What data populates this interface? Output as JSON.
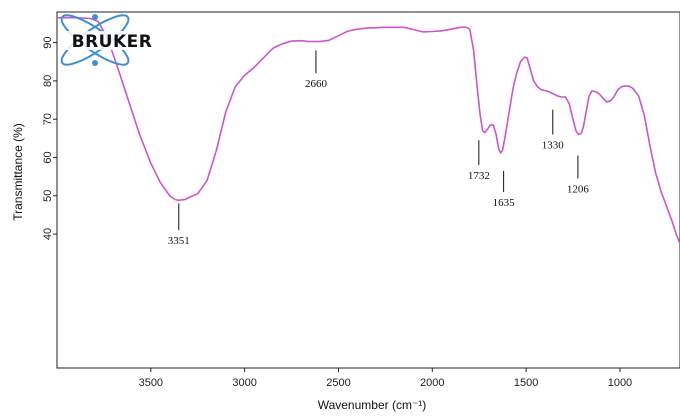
{
  "chart_data": {
    "type": "line",
    "xlabel": "Wavenumber (cm⁻¹)",
    "ylabel": "Transmittance  (%)",
    "xlim": [
      4000,
      680
    ],
    "ylim": [
      5,
      98
    ],
    "x_ticks": [
      3500,
      3000,
      2500,
      2000,
      1500,
      1000
    ],
    "y_ticks": [
      40,
      50,
      60,
      70,
      80,
      90
    ],
    "grid": false,
    "series": [
      {
        "color": "#cc55cc",
        "points": [
          [
            4000,
            96.5
          ],
          [
            3900,
            96.5
          ],
          [
            3820,
            96.3
          ],
          [
            3780,
            95.5
          ],
          [
            3730,
            91
          ],
          [
            3680,
            84
          ],
          [
            3620,
            75
          ],
          [
            3560,
            66
          ],
          [
            3500,
            58.5
          ],
          [
            3450,
            53.5
          ],
          [
            3400,
            50
          ],
          [
            3370,
            49
          ],
          [
            3351,
            48.8
          ],
          [
            3320,
            49
          ],
          [
            3290,
            49.7
          ],
          [
            3250,
            50.5
          ],
          [
            3200,
            54
          ],
          [
            3150,
            62
          ],
          [
            3100,
            72
          ],
          [
            3050,
            78.5
          ],
          [
            3000,
            81.5
          ],
          [
            2950,
            83.5
          ],
          [
            2900,
            86
          ],
          [
            2850,
            88.5
          ],
          [
            2800,
            89.7
          ],
          [
            2750,
            90.4
          ],
          [
            2700,
            90.5
          ],
          [
            2660,
            90.3
          ],
          [
            2600,
            90.3
          ],
          [
            2550,
            90.6
          ],
          [
            2500,
            91.8
          ],
          [
            2450,
            93
          ],
          [
            2400,
            93.5
          ],
          [
            2350,
            93.8
          ],
          [
            2300,
            93.9
          ],
          [
            2250,
            94
          ],
          [
            2200,
            94
          ],
          [
            2150,
            94
          ],
          [
            2100,
            93.4
          ],
          [
            2050,
            92.8
          ],
          [
            2000,
            92.9
          ],
          [
            1950,
            93.1
          ],
          [
            1900,
            93.5
          ],
          [
            1850,
            94
          ],
          [
            1820,
            94
          ],
          [
            1800,
            93.5
          ],
          [
            1780,
            88
          ],
          [
            1760,
            78
          ],
          [
            1745,
            71
          ],
          [
            1732,
            67
          ],
          [
            1720,
            66.5
          ],
          [
            1705,
            67.5
          ],
          [
            1690,
            68.5
          ],
          [
            1675,
            68.5
          ],
          [
            1660,
            66
          ],
          [
            1645,
            62
          ],
          [
            1635,
            61.2
          ],
          [
            1625,
            62
          ],
          [
            1610,
            66
          ],
          [
            1590,
            72
          ],
          [
            1570,
            78
          ],
          [
            1550,
            82
          ],
          [
            1530,
            85
          ],
          [
            1510,
            86.2
          ],
          [
            1495,
            86
          ],
          [
            1480,
            83.5
          ],
          [
            1460,
            80
          ],
          [
            1440,
            78.5
          ],
          [
            1420,
            77.7
          ],
          [
            1400,
            77.5
          ],
          [
            1380,
            77.2
          ],
          [
            1350,
            76.5
          ],
          [
            1330,
            76
          ],
          [
            1310,
            75.8
          ],
          [
            1290,
            75.8
          ],
          [
            1270,
            74
          ],
          [
            1250,
            70
          ],
          [
            1235,
            67
          ],
          [
            1220,
            66
          ],
          [
            1206,
            66.3
          ],
          [
            1195,
            68
          ],
          [
            1180,
            72
          ],
          [
            1165,
            76
          ],
          [
            1150,
            77.4
          ],
          [
            1130,
            77.2
          ],
          [
            1110,
            76.6
          ],
          [
            1090,
            75.4
          ],
          [
            1070,
            74.5
          ],
          [
            1050,
            74.8
          ],
          [
            1030,
            76
          ],
          [
            1010,
            77.8
          ],
          [
            990,
            78.5
          ],
          [
            970,
            78.7
          ],
          [
            950,
            78.6
          ],
          [
            930,
            78
          ],
          [
            900,
            76
          ],
          [
            870,
            71
          ],
          [
            840,
            63
          ],
          [
            810,
            56
          ],
          [
            780,
            51
          ],
          [
            750,
            47
          ],
          [
            720,
            43
          ],
          [
            700,
            40
          ],
          [
            680,
            37.5
          ]
        ]
      }
    ],
    "annotations": [
      {
        "label": "3351",
        "x": 3351,
        "tick_y": [
          48,
          41
        ],
        "label_pos": "below"
      },
      {
        "label": "2660",
        "x": 2620,
        "tick_y": [
          88,
          82
        ],
        "label_pos": "below"
      },
      {
        "label": "1732",
        "x": 1752,
        "tick_y": [
          64.5,
          58
        ],
        "label_pos": "below"
      },
      {
        "label": "1635",
        "x": 1620,
        "tick_y": [
          56.5,
          51
        ],
        "label_pos": "below"
      },
      {
        "label": "1330",
        "x": 1358,
        "tick_y": [
          72.5,
          66
        ],
        "label_pos": "below"
      },
      {
        "label": "1206",
        "x": 1224,
        "tick_y": [
          60.5,
          54.5
        ],
        "label_pos": "below"
      }
    ]
  },
  "logo": {
    "text": "BRUKER"
  }
}
